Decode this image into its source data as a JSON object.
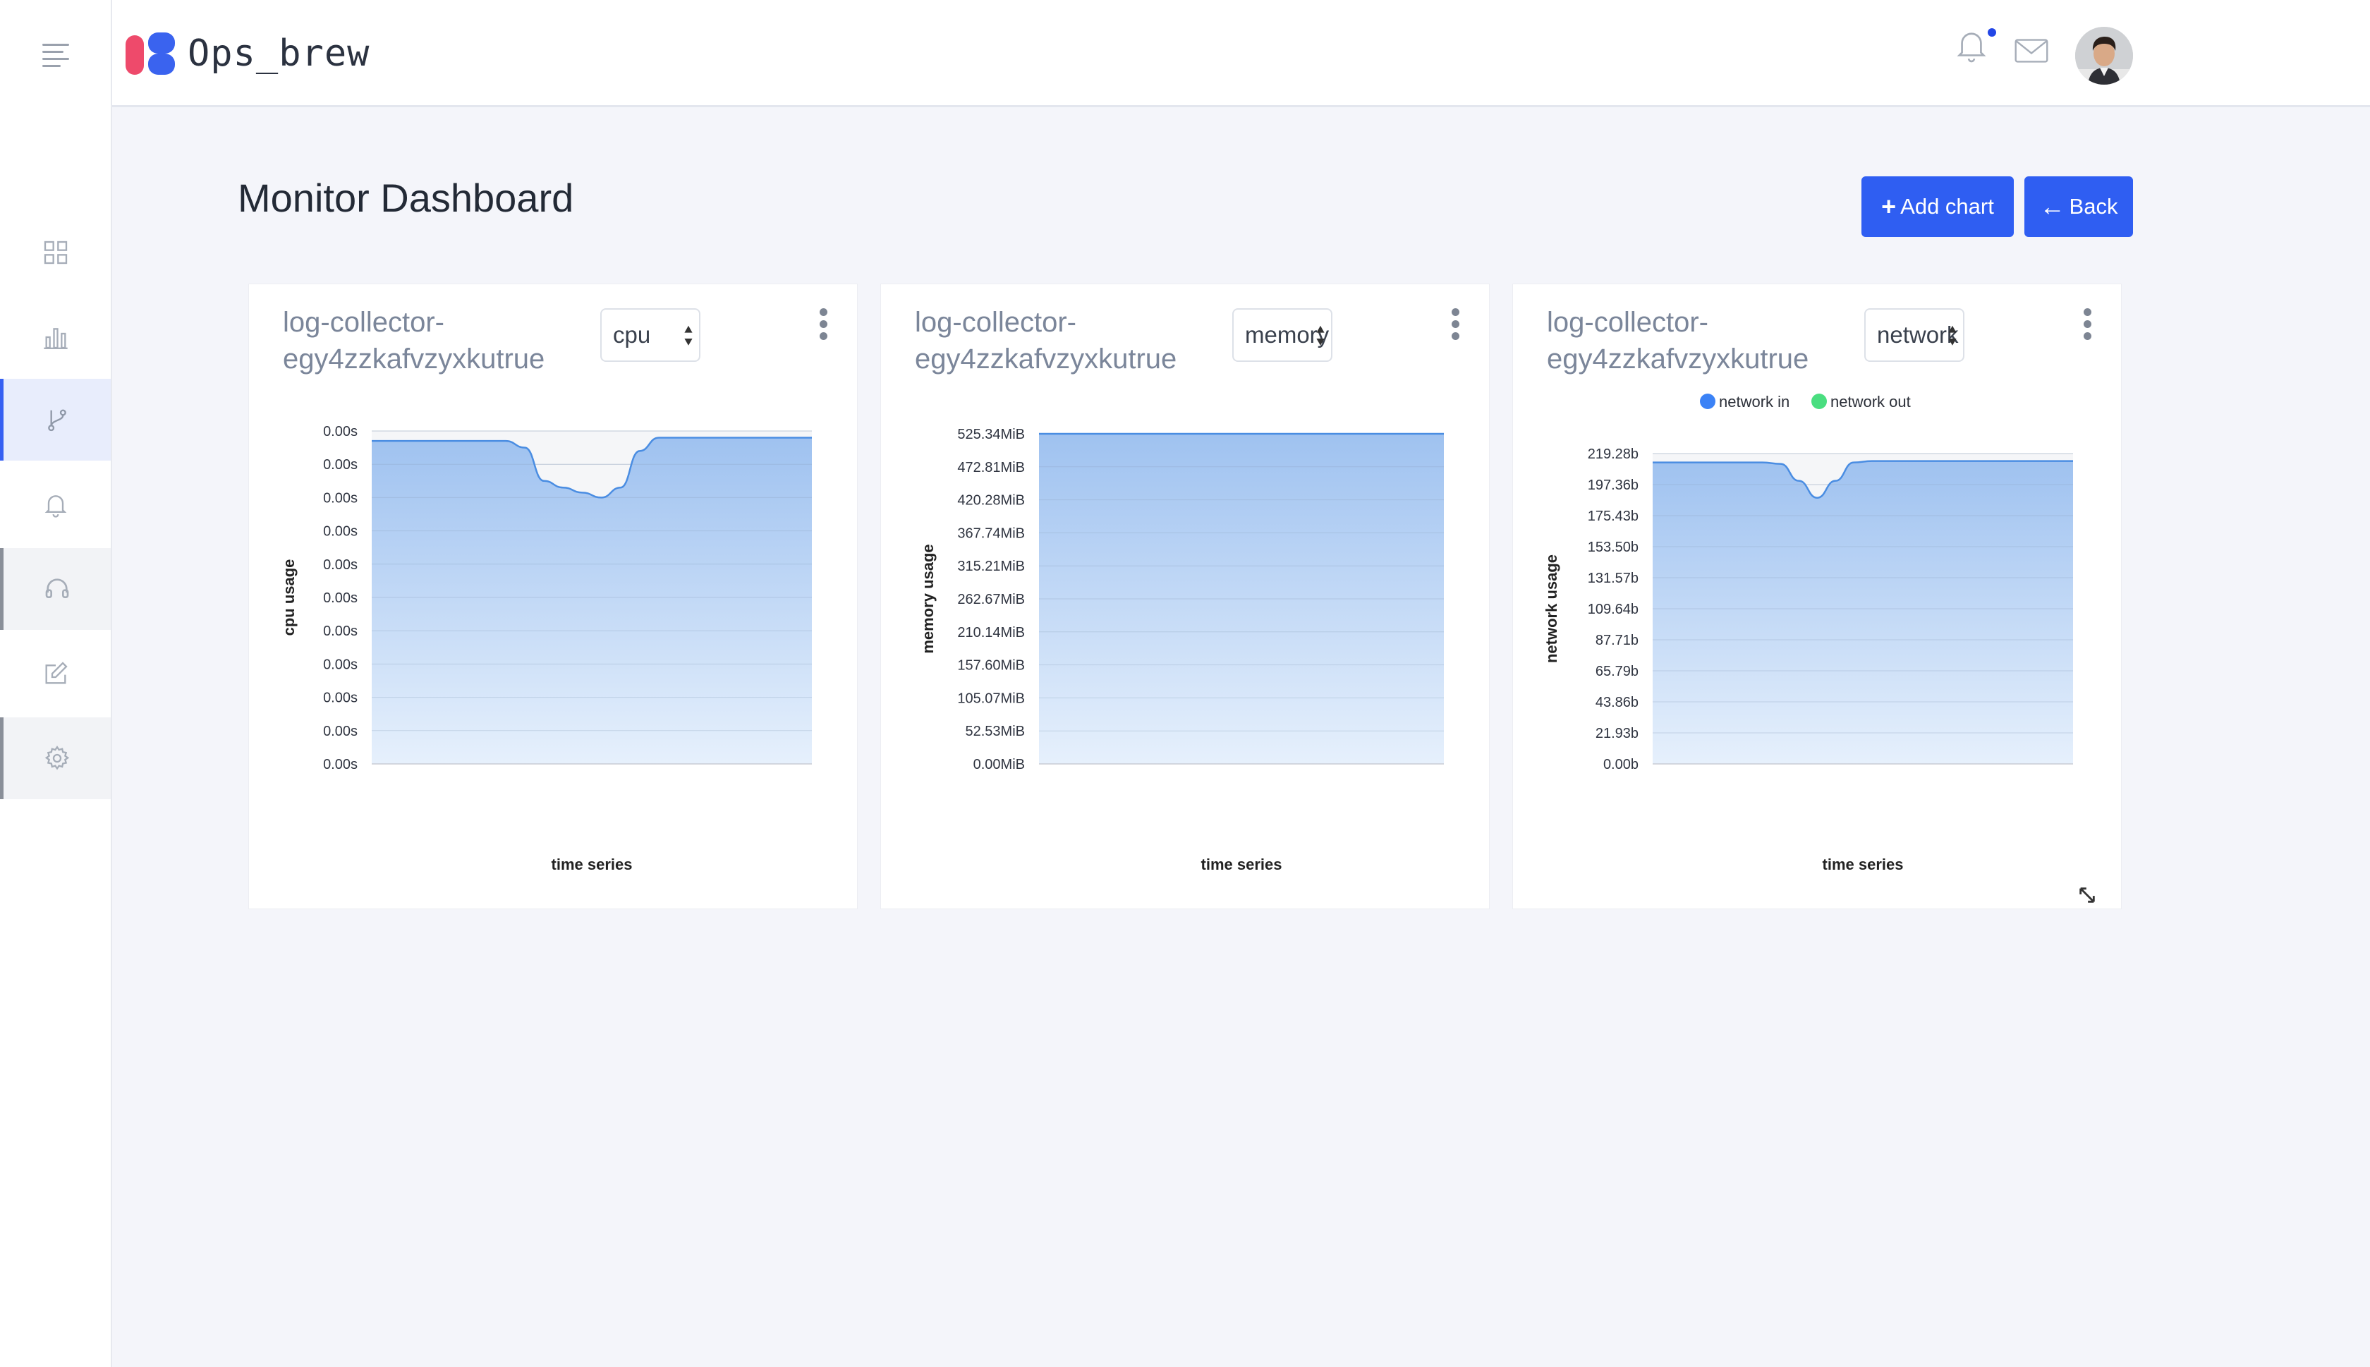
{
  "app": {
    "name": "Ops_brew"
  },
  "sidebar": {
    "items": [
      {
        "icon": "dashboard-grid-icon"
      },
      {
        "icon": "bar-chart-icon"
      },
      {
        "icon": "git-branch-icon",
        "active": true
      },
      {
        "icon": "bell-icon"
      },
      {
        "icon": "headset-icon"
      },
      {
        "icon": "edit-icon"
      },
      {
        "icon": "settings-gear-icon"
      }
    ]
  },
  "header": {
    "title": "Monitor Dashboard",
    "add_chart_label": "Add chart",
    "back_label": "Back"
  },
  "colors": {
    "accent": "#2f5ef2",
    "area_fill_top": "#9fc2f0",
    "area_fill_bottom": "#e6f0fc",
    "line": "#4a8de2",
    "legend_in": "#3b82f6",
    "legend_out": "#4ade80"
  },
  "cards": [
    {
      "title": "log-collector-egy4zzkafvzyxkutrue",
      "metric_select": "cpu",
      "kebab_icon": "more-vertical-icon"
    },
    {
      "title": "log-collector-egy4zzkafvzyxkutrue",
      "metric_select": "memory",
      "kebab_icon": "more-vertical-icon"
    },
    {
      "title": "log-collector-egy4zzkafvzyxkutrue",
      "metric_select": "network",
      "kebab_icon": "more-vertical-icon"
    }
  ],
  "chart_data": [
    {
      "type": "area",
      "xlabel": "time series",
      "ylabel": "cpu usage",
      "y_tick_labels": [
        "0.00s",
        "0.00s",
        "0.00s",
        "0.00s",
        "0.00s",
        "0.00s",
        "0.00s",
        "0.00s",
        "0.00s",
        "0.00s",
        "0.00s"
      ],
      "ylim": [
        0,
        10
      ],
      "grid": true,
      "series": [
        {
          "values": [
            9.7,
            9.7,
            9.7,
            9.7,
            9.7,
            9.7,
            9.7,
            9.7,
            9.5,
            8.5,
            8.3,
            8.15,
            8.0,
            8.3,
            9.4,
            9.8,
            9.8,
            9.8,
            9.8,
            9.8,
            9.8,
            9.8,
            9.8,
            9.8
          ]
        }
      ]
    },
    {
      "type": "area",
      "xlabel": "time series",
      "ylabel": "memory usage",
      "y_tick_labels": [
        "0.00MiB",
        "52.53MiB",
        "105.07MiB",
        "157.60MiB",
        "210.14MiB",
        "262.67MiB",
        "315.21MiB",
        "367.74MiB",
        "420.28MiB",
        "472.81MiB",
        "525.34MiB"
      ],
      "ylim": [
        0,
        525.34
      ],
      "grid": true,
      "series": [
        {
          "values": [
            525.34,
            525.34,
            525.34,
            525.34,
            525.34,
            525.34,
            525.34,
            525.34,
            525.34,
            525.34,
            525.34,
            525.34
          ]
        }
      ]
    },
    {
      "type": "area",
      "xlabel": "time series",
      "ylabel": "network usage",
      "y_tick_labels": [
        "0.00b",
        "21.93b",
        "43.86b",
        "65.79b",
        "87.71b",
        "109.64b",
        "131.57b",
        "153.50b",
        "175.43b",
        "197.36b",
        "219.28b"
      ],
      "ylim": [
        0,
        219.28
      ],
      "grid": true,
      "legend_position": "top-center",
      "series": [
        {
          "name": "network in",
          "values": [
            213,
            213,
            213,
            213,
            213,
            213,
            213,
            212,
            200,
            188,
            200,
            213,
            214,
            214,
            214,
            214,
            214,
            214,
            214,
            214,
            214,
            214,
            214,
            214
          ]
        },
        {
          "name": "network out",
          "values": []
        }
      ]
    }
  ]
}
